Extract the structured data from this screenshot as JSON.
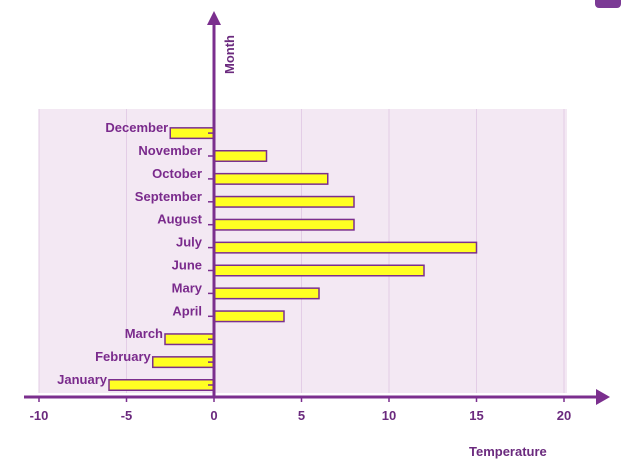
{
  "colors": {
    "panel": "#f3e8f3",
    "gridline": "#e3cde6",
    "axis": "#7b2f8e",
    "bar_fill": "#ffff22",
    "bar_stroke": "#7b2f8e",
    "label": "#7a2a8c"
  },
  "chart_data": {
    "type": "bar",
    "orientation": "horizontal",
    "title": "",
    "xlabel": "Temperature",
    "ylabel": "Month",
    "xlim": [
      -10,
      20
    ],
    "xticks": [
      "-10",
      "-5",
      "0",
      "5",
      "10",
      "15",
      "20"
    ],
    "categories": [
      "January",
      "February",
      "March",
      "April",
      "Mary",
      "June",
      "July",
      "August",
      "September",
      "October",
      "November",
      "December"
    ],
    "values": [
      -6,
      -3.5,
      -2.8,
      4,
      6,
      12,
      15,
      8,
      8,
      6.5,
      3,
      -2.5
    ],
    "grid": true,
    "legend": "none"
  },
  "icons": {
    "corner": "pencil-icon"
  }
}
